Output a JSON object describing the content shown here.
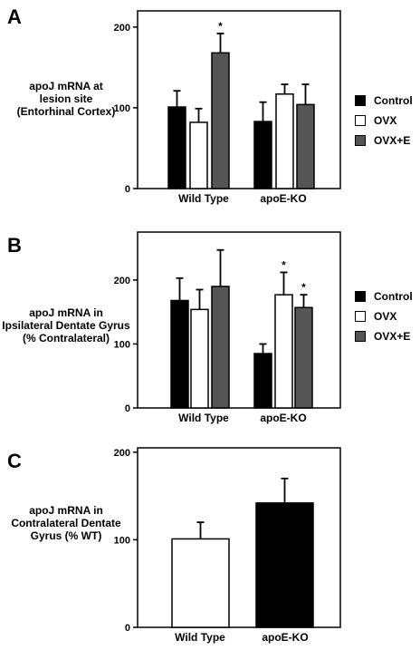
{
  "colors": {
    "control": "#000000",
    "ovx": "#ffffff",
    "ovxe": "#555555"
  },
  "panels": {
    "a": {
      "letter": "A",
      "ylabel_lines": [
        "apoJ mRNA at",
        "lesion site",
        "(Entorhinal Cortex)"
      ]
    },
    "b": {
      "letter": "B",
      "ylabel_lines": [
        "apoJ mRNA in",
        "Ipsilateral Dentate Gyrus",
        "(% Contralateral)"
      ]
    },
    "c": {
      "letter": "C",
      "ylabel_lines": [
        "apoJ mRNA in",
        "Contralateral Dentate",
        "Gyrus (% WT)"
      ]
    }
  },
  "legend_a": [
    {
      "label": "Control",
      "color": "#000000"
    },
    {
      "label": "OVX",
      "color": "#ffffff"
    },
    {
      "label": "OVX+E",
      "color": "#555555"
    }
  ],
  "legend_b": [
    {
      "label": "Control",
      "color": "#000000"
    },
    {
      "label": "OVX",
      "color": "#ffffff"
    },
    {
      "label": "OVX+E",
      "color": "#555555"
    }
  ],
  "chart_data": [
    {
      "type": "bar",
      "panel": "A",
      "categories": [
        "Wild Type",
        "apoE-KO"
      ],
      "series": [
        {
          "name": "Control",
          "values": [
            101,
            83
          ],
          "errors": [
            20,
            24
          ],
          "significant": [
            false,
            false
          ]
        },
        {
          "name": "OVX",
          "values": [
            82,
            117
          ],
          "errors": [
            17,
            12
          ],
          "significant": [
            false,
            false
          ]
        },
        {
          "name": "OVX+E",
          "values": [
            168,
            104
          ],
          "errors": [
            24,
            25
          ],
          "significant": [
            true,
            false
          ]
        }
      ],
      "xlabel": "",
      "ylabel": "apoJ mRNA at lesion site (Entorhinal Cortex)",
      "ylim": [
        0,
        220
      ],
      "yticks": [
        0,
        100,
        200
      ],
      "star_label": "*"
    },
    {
      "type": "bar",
      "panel": "B",
      "categories": [
        "Wild Type",
        "apoE-KO"
      ],
      "series": [
        {
          "name": "Control",
          "values": [
            168,
            85
          ],
          "errors": [
            35,
            15
          ],
          "significant": [
            false,
            false
          ]
        },
        {
          "name": "OVX",
          "values": [
            154,
            177
          ],
          "errors": [
            31,
            35
          ],
          "significant": [
            false,
            true
          ]
        },
        {
          "name": "OVX+E",
          "values": [
            190,
            157
          ],
          "errors": [
            57,
            20
          ],
          "significant": [
            false,
            true
          ]
        }
      ],
      "xlabel": "",
      "ylabel": "apoJ mRNA in Ipsilateral Dentate Gyrus (% Contralateral)",
      "ylim": [
        0,
        275
      ],
      "yticks": [
        0,
        100,
        200
      ],
      "star_label": "*"
    },
    {
      "type": "bar",
      "panel": "C",
      "categories": [
        "Wild Type",
        "apoE-KO"
      ],
      "series": [
        {
          "name": "Wild Type / apoE-KO",
          "values": [
            101,
            142
          ],
          "errors": [
            19,
            28
          ],
          "significant": [
            false,
            false
          ]
        }
      ],
      "xlabel": "",
      "ylabel": "apoJ mRNA in Contralateral Dentate Gyrus (% WT)",
      "ylim": [
        0,
        205
      ],
      "yticks": [
        0,
        100,
        200
      ],
      "star_label": "*"
    }
  ]
}
